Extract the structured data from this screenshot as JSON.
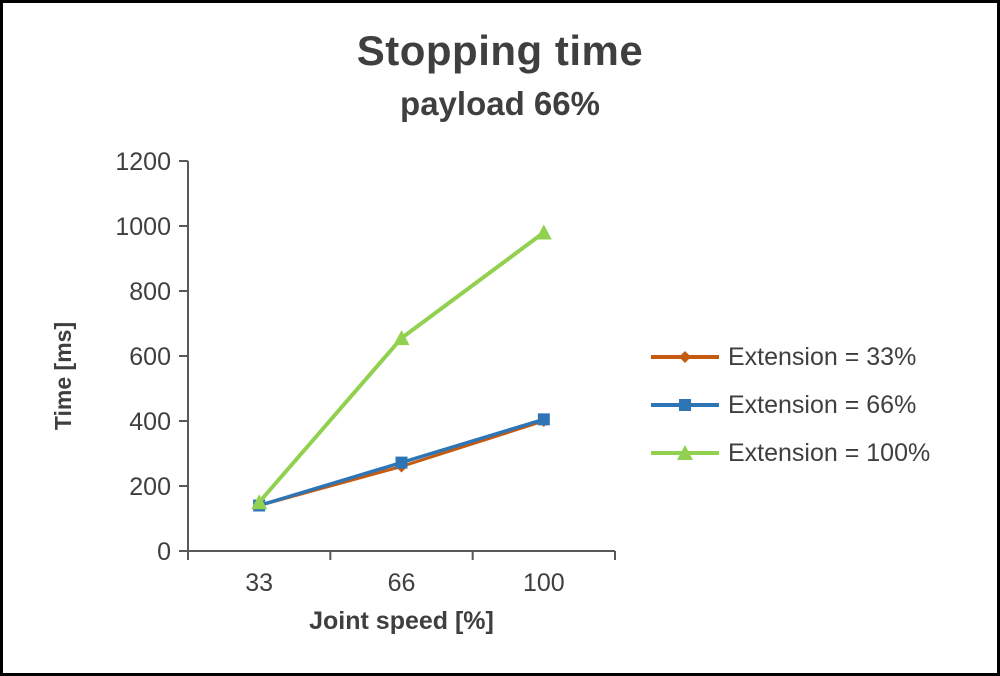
{
  "chart_data": {
    "type": "line",
    "title": "Stopping time",
    "subtitle": "payload 66%",
    "xlabel": "Joint speed [%]",
    "ylabel": "Time [ms]",
    "categories": [
      "33",
      "66",
      "100"
    ],
    "ylim": [
      0,
      1200
    ],
    "ytick_step": 200,
    "grid": false,
    "legend_position": "right",
    "axis_color": "#595959",
    "text_color": "#3f3f3f",
    "series": [
      {
        "name": "Extension = 33%",
        "values": [
          140,
          260,
          400
        ],
        "color": "#C55A11",
        "marker": "diamond",
        "marker_size": 5,
        "line_width": 3
      },
      {
        "name": "Extension = 66%",
        "values": [
          140,
          272,
          405
        ],
        "color": "#2E75B6",
        "marker": "square",
        "marker_size": 6,
        "line_width": 3.5
      },
      {
        "name": "Extension = 100%",
        "values": [
          150,
          655,
          980
        ],
        "color": "#92D050",
        "marker": "triangle",
        "marker_size": 7,
        "line_width": 4
      }
    ]
  },
  "frame": {
    "border_color": "#000000",
    "background": "#ffffff"
  }
}
